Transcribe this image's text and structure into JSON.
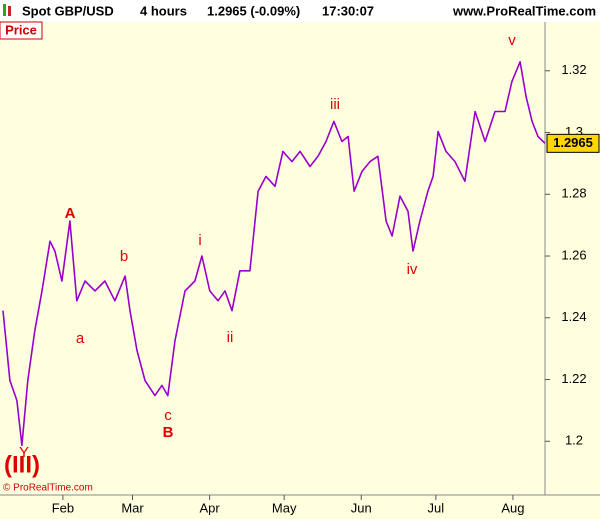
{
  "header": {
    "symbol": "Spot GBP/USD",
    "timeframe": "4 hours",
    "quote": "1.2965 (-0.09%)",
    "time": "17:30:07",
    "site": "www.ProRealTime.com"
  },
  "panel_label": "Price",
  "copyright": "© ProRealTime.com",
  "chart_data": {
    "type": "line",
    "x": [
      6.9,
      9.7,
      12.5,
      14.5,
      16.9,
      19.7,
      22.6,
      25.8,
      27.8,
      30.6,
      33.8,
      36.6,
      39.9,
      43.9,
      47.9,
      51.9,
      56.0,
      58.0,
      60.8,
      64.0,
      68.0,
      70.8,
      73.2,
      76.1,
      80.1,
      84.1,
      86.9,
      90.1,
      93.4,
      96.2,
      99.0,
      102.2,
      106.2,
      109.5,
      112.7,
      116.3,
      119.5,
      123.1,
      126.4,
      130.4,
      133.6,
      136.8,
      140.0,
      143.2,
      145.7,
      148.1,
      151.3,
      154.5,
      157.7,
      161.0,
      163.4,
      166.6,
      169.8,
      171.8,
      174.6,
      177.8,
      179.9,
      181.9,
      185.1,
      188.7,
      192.7,
      196.8,
      200.8,
      204.8,
      208.8,
      211.6,
      214.9,
      217.3,
      219.7,
      222.1,
      224.9
    ],
    "series": [
      {
        "color": "#9900cc",
        "values": [
          1.2423,
          1.2197,
          1.2132,
          1.1987,
          1.2197,
          1.2358,
          1.2487,
          1.2648,
          1.2616,
          1.2519,
          1.2713,
          1.2455,
          1.2519,
          1.2487,
          1.2519,
          1.2455,
          1.2535,
          1.2423,
          1.2294,
          1.2197,
          1.2148,
          1.2181,
          1.2148,
          1.2326,
          1.2487,
          1.2519,
          1.26,
          1.2487,
          1.2455,
          1.2487,
          1.2423,
          1.2552,
          1.2552,
          1.281,
          1.2858,
          1.2826,
          1.2939,
          1.2906,
          1.2939,
          1.289,
          1.2923,
          1.2971,
          1.3036,
          1.2971,
          1.2987,
          1.281,
          1.2874,
          1.2906,
          1.2923,
          1.2713,
          1.2665,
          1.2794,
          1.2745,
          1.2616,
          1.2713,
          1.281,
          1.2858,
          1.3003,
          1.2939,
          1.2906,
          1.2842,
          1.3068,
          1.2971,
          1.3068,
          1.3068,
          1.3165,
          1.3229,
          1.3116,
          1.3036,
          1.2987,
          1.2965
        ]
      }
    ],
    "last_price": 1.2965,
    "xlim": [
      5.7,
      224.9
    ],
    "xticks": [
      {
        "value": 31,
        "label": "Feb"
      },
      {
        "value": 59,
        "label": "Mar"
      },
      {
        "value": 90,
        "label": "Apr"
      },
      {
        "value": 120,
        "label": "May"
      },
      {
        "value": 151,
        "label": "Jun"
      },
      {
        "value": 181,
        "label": "Jul"
      },
      {
        "value": 212,
        "label": "Aug"
      }
    ],
    "ylim": [
      1.1826,
      1.3358
    ],
    "yticks": [
      1.2,
      1.22,
      1.24,
      1.26,
      1.28,
      1.3,
      1.32
    ],
    "annotations": [
      "(III)",
      "Y",
      "A",
      "a",
      "b",
      "c",
      "B",
      "i",
      "ii",
      "iii",
      "iv",
      "v"
    ]
  }
}
